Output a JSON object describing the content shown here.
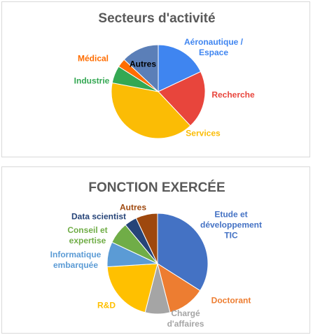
{
  "chart_data": [
    {
      "type": "pie",
      "title": "Secteurs d'activité",
      "categories": [
        "Aéronautique / Espace",
        "Recherche",
        "Services",
        "Industrie",
        "Médical",
        "Autres"
      ],
      "values": [
        18,
        20,
        40,
        6,
        3,
        13
      ],
      "colors": [
        "#3f85f0",
        "#e8453c",
        "#fbbc05",
        "#34a853",
        "#ff6d01",
        "#5b7fb8"
      ]
    },
    {
      "type": "pie",
      "title": "FONCTION EXERCÉE",
      "categories": [
        "Etude et développement TIC",
        "Doctorant",
        "Chargé d'affaires",
        "R&D",
        "Informatique embarquée",
        "Conseil et expertise",
        "Data scientist",
        "Autres"
      ],
      "values": [
        34,
        12,
        8,
        20,
        8,
        7,
        4,
        7
      ],
      "colors": [
        "#4472c4",
        "#ed7d31",
        "#a5a5a5",
        "#ffc000",
        "#5b9bd5",
        "#70ad47",
        "#264478",
        "#9e480e"
      ]
    }
  ]
}
